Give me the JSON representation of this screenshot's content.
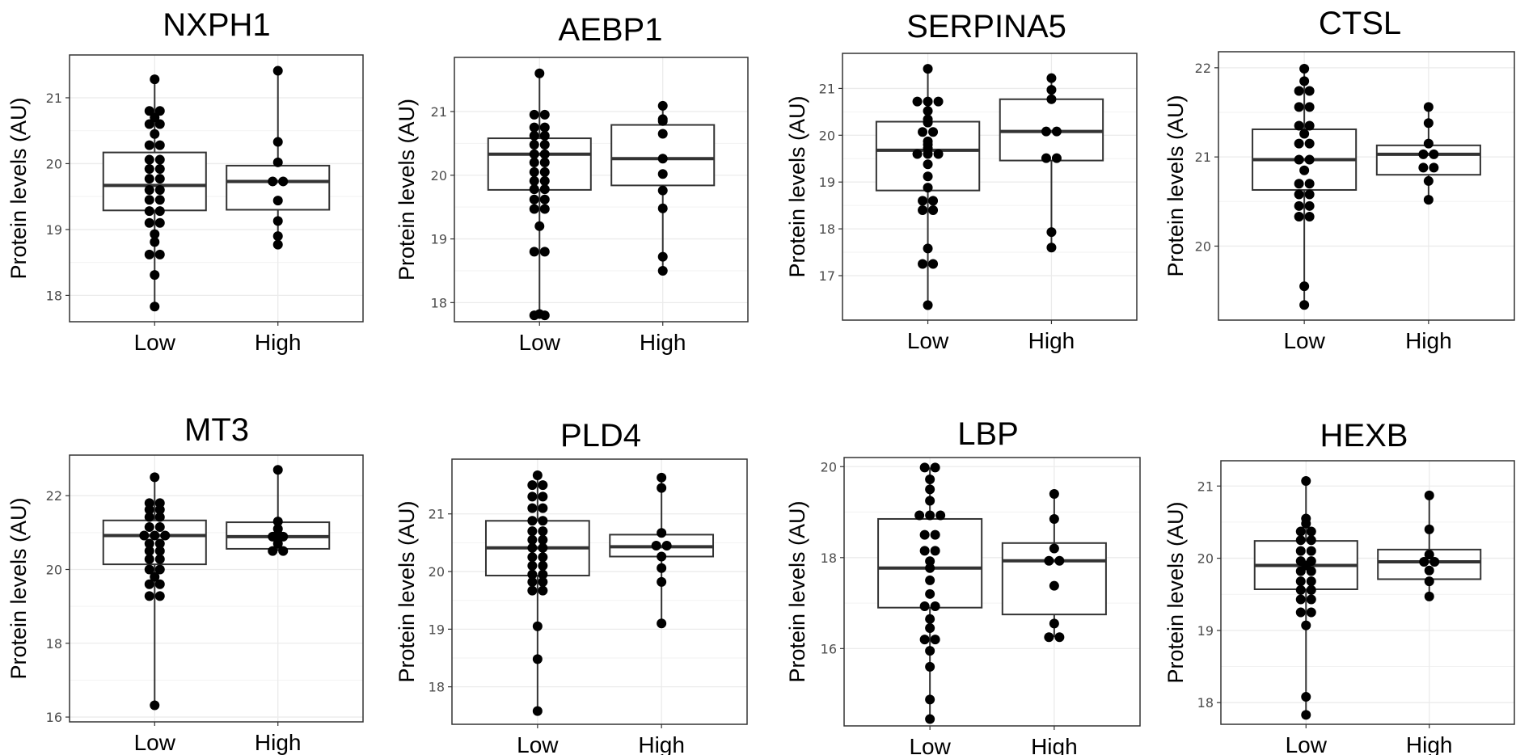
{
  "chart_data": [
    {
      "type": "box",
      "title": "NXPH1",
      "ylabel": "Protein levels (AU)",
      "categories": [
        "Low",
        "High"
      ],
      "yticks": [
        18,
        19,
        20,
        21
      ],
      "ylim": [
        17.6,
        21.65
      ],
      "boxes": [
        {
          "category": "Low",
          "min": 17.83,
          "q1": 19.29,
          "median": 19.67,
          "q3": 20.17,
          "max": 21.28
        },
        {
          "category": "High",
          "min": 18.77,
          "q1": 19.3,
          "median": 19.73,
          "q3": 19.97,
          "max": 21.41
        }
      ],
      "points": [
        {
          "category": "Low",
          "values": [
            21.28,
            20.8,
            20.8,
            20.7,
            20.6,
            20.6,
            20.45,
            20.28,
            20.28,
            20.06,
            20.06,
            19.92,
            19.92,
            19.77,
            19.77,
            19.6,
            19.6,
            19.45,
            19.45,
            19.28,
            19.28,
            19.1,
            19.1,
            18.93,
            18.81,
            18.62,
            18.62,
            18.31,
            17.83
          ]
        },
        {
          "category": "High",
          "values": [
            21.41,
            20.33,
            20.02,
            19.73,
            19.73,
            19.44,
            19.13,
            18.9,
            18.77
          ]
        }
      ]
    },
    {
      "type": "box",
      "title": "AEBP1",
      "ylabel": "Protein levels (AU)",
      "categories": [
        "Low",
        "High"
      ],
      "yticks": [
        18,
        19,
        20,
        21
      ],
      "ylim": [
        17.7,
        21.85
      ],
      "boxes": [
        {
          "category": "Low",
          "min": 17.8,
          "q1": 19.77,
          "median": 20.33,
          "q3": 20.58,
          "max": 21.6
        },
        {
          "category": "High",
          "min": 18.5,
          "q1": 19.84,
          "median": 20.26,
          "q3": 20.79,
          "max": 21.09
        }
      ],
      "points": [
        {
          "category": "Low",
          "values": [
            21.6,
            20.95,
            20.95,
            20.75,
            20.75,
            20.62,
            20.62,
            20.48,
            20.48,
            20.33,
            20.33,
            20.2,
            20.2,
            20.05,
            20.05,
            19.91,
            19.91,
            19.78,
            19.78,
            19.62,
            19.62,
            19.47,
            19.47,
            19.2,
            18.8,
            18.8,
            17.82,
            17.8,
            17.8
          ]
        },
        {
          "category": "High",
          "values": [
            21.09,
            20.88,
            20.85,
            20.65,
            20.26,
            20.02,
            19.76,
            19.48,
            18.72,
            18.5
          ]
        }
      ]
    },
    {
      "type": "box",
      "title": "SERPINA5",
      "ylabel": "Protein levels (AU)",
      "categories": [
        "Low",
        "High"
      ],
      "yticks": [
        17,
        18,
        19,
        20,
        21
      ],
      "ylim": [
        16.05,
        21.75
      ],
      "boxes": [
        {
          "category": "Low",
          "min": 16.37,
          "q1": 18.82,
          "median": 19.68,
          "q3": 20.29,
          "max": 21.42
        },
        {
          "category": "High",
          "min": 17.6,
          "q1": 19.46,
          "median": 20.08,
          "q3": 20.77,
          "max": 21.22
        }
      ],
      "points": [
        {
          "category": "Low",
          "values": [
            21.42,
            20.72,
            20.72,
            20.72,
            20.52,
            20.34,
            20.27,
            20.07,
            20.07,
            19.87,
            19.8,
            19.72,
            19.6,
            19.6,
            19.6,
            19.38,
            19.12,
            18.88,
            18.6,
            18.6,
            18.4,
            18.4,
            17.58,
            17.25,
            17.25,
            16.37
          ]
        },
        {
          "category": "High",
          "values": [
            21.22,
            20.97,
            20.77,
            20.08,
            20.08,
            19.51,
            19.51,
            17.93,
            17.6
          ]
        }
      ]
    },
    {
      "type": "box",
      "title": "CTSL",
      "ylabel": "Protein levels (AU)",
      "categories": [
        "Low",
        "High"
      ],
      "yticks": [
        20,
        21,
        22
      ],
      "ylim": [
        19.17,
        22.18
      ],
      "boxes": [
        {
          "category": "Low",
          "min": 19.34,
          "q1": 20.63,
          "median": 20.97,
          "q3": 21.31,
          "max": 21.99
        },
        {
          "category": "High",
          "min": 20.52,
          "q1": 20.8,
          "median": 21.03,
          "q3": 21.13,
          "max": 21.56
        }
      ],
      "points": [
        {
          "category": "Low",
          "values": [
            21.99,
            21.85,
            21.74,
            21.74,
            21.56,
            21.56,
            21.35,
            21.35,
            21.26,
            21.15,
            21.15,
            20.97,
            20.97,
            20.85,
            20.7,
            20.7,
            20.58,
            20.58,
            20.45,
            20.45,
            20.33,
            20.33,
            19.55,
            19.34
          ]
        },
        {
          "category": "High",
          "values": [
            21.56,
            21.38,
            21.15,
            21.03,
            21.03,
            20.88,
            20.88,
            20.73,
            20.52
          ]
        }
      ]
    },
    {
      "type": "box",
      "title": "MT3",
      "ylabel": "Protein levels (AU)",
      "categories": [
        "Low",
        "High"
      ],
      "yticks": [
        16,
        18,
        20,
        22
      ],
      "ylim": [
        15.87,
        23.1
      ],
      "boxes": [
        {
          "category": "Low",
          "min": 16.32,
          "q1": 20.14,
          "median": 20.92,
          "q3": 21.33,
          "max": 22.5
        },
        {
          "category": "High",
          "min": 20.5,
          "q1": 20.56,
          "median": 20.89,
          "q3": 21.28,
          "max": 22.7
        }
      ],
      "points": [
        {
          "category": "Low",
          "values": [
            22.5,
            21.8,
            21.8,
            21.62,
            21.62,
            21.42,
            21.42,
            21.15,
            21.15,
            20.92,
            20.92,
            20.92,
            20.7,
            20.7,
            20.5,
            20.5,
            20.28,
            20.28,
            20.0,
            20.0,
            19.8,
            19.6,
            19.6,
            19.28,
            19.28,
            16.32
          ]
        },
        {
          "category": "High",
          "values": [
            22.7,
            21.3,
            21.1,
            20.95,
            20.89,
            20.89,
            20.7,
            20.5,
            20.5
          ]
        }
      ]
    },
    {
      "type": "box",
      "title": "PLD4",
      "ylabel": "Protein levels (AU)",
      "categories": [
        "Low",
        "High"
      ],
      "yticks": [
        18,
        19,
        20,
        21
      ],
      "ylim": [
        17.35,
        21.95
      ],
      "boxes": [
        {
          "category": "Low",
          "min": 17.58,
          "q1": 19.93,
          "median": 20.41,
          "q3": 20.88,
          "max": 21.67
        },
        {
          "category": "High",
          "min": 19.1,
          "q1": 20.26,
          "median": 20.43,
          "q3": 20.64,
          "max": 21.63
        }
      ],
      "points": [
        {
          "category": "Low",
          "values": [
            21.67,
            21.5,
            21.5,
            21.3,
            21.3,
            21.1,
            21.1,
            20.88,
            20.88,
            20.7,
            20.7,
            20.55,
            20.55,
            20.41,
            20.41,
            20.25,
            20.25,
            20.1,
            20.1,
            19.95,
            19.95,
            19.82,
            19.82,
            19.67,
            19.67,
            19.05,
            18.48,
            17.58
          ]
        },
        {
          "category": "High",
          "values": [
            21.63,
            21.45,
            20.67,
            20.45,
            20.45,
            20.26,
            20.06,
            19.82,
            19.1
          ]
        }
      ]
    },
    {
      "type": "box",
      "title": "LBP",
      "ylabel": "Protein levels (AU)",
      "categories": [
        "Low",
        "High"
      ],
      "yticks": [
        16,
        18,
        20
      ],
      "ylim": [
        14.3,
        20.2
      ],
      "boxes": [
        {
          "category": "Low",
          "min": 14.45,
          "q1": 16.9,
          "median": 17.77,
          "q3": 18.85,
          "max": 19.98
        },
        {
          "category": "High",
          "min": 16.25,
          "q1": 16.75,
          "median": 17.93,
          "q3": 18.32,
          "max": 19.4
        }
      ],
      "points": [
        {
          "category": "Low",
          "values": [
            19.98,
            19.98,
            19.72,
            19.5,
            19.25,
            18.93,
            18.93,
            18.93,
            18.5,
            18.5,
            18.15,
            18.15,
            17.92,
            17.77,
            17.5,
            17.2,
            16.93,
            16.93,
            16.65,
            16.45,
            16.2,
            16.2,
            15.95,
            15.6,
            14.88,
            14.45
          ]
        },
        {
          "category": "High",
          "values": [
            19.4,
            18.85,
            18.2,
            17.93,
            17.93,
            17.38,
            16.55,
            16.25,
            16.25
          ]
        }
      ]
    },
    {
      "type": "box",
      "title": "HEXB",
      "ylabel": "Protein levels (AU)",
      "categories": [
        "Low",
        "High"
      ],
      "yticks": [
        18,
        19,
        20,
        21
      ],
      "ylim": [
        17.7,
        21.35
      ],
      "boxes": [
        {
          "category": "Low",
          "min": 17.83,
          "q1": 19.57,
          "median": 19.9,
          "q3": 20.24,
          "max": 21.07
        },
        {
          "category": "High",
          "min": 19.47,
          "q1": 19.71,
          "median": 19.95,
          "q3": 20.12,
          "max": 20.87
        }
      ],
      "points": [
        {
          "category": "Low",
          "values": [
            21.07,
            20.55,
            20.48,
            20.37,
            20.37,
            20.25,
            20.25,
            20.1,
            20.1,
            19.96,
            19.96,
            19.9,
            19.82,
            19.82,
            19.68,
            19.68,
            19.56,
            19.56,
            19.43,
            19.43,
            19.25,
            19.25,
            19.07,
            18.08,
            17.83
          ]
        },
        {
          "category": "High",
          "values": [
            20.87,
            20.4,
            20.05,
            19.95,
            19.95,
            19.83,
            19.68,
            19.47
          ]
        }
      ]
    }
  ]
}
